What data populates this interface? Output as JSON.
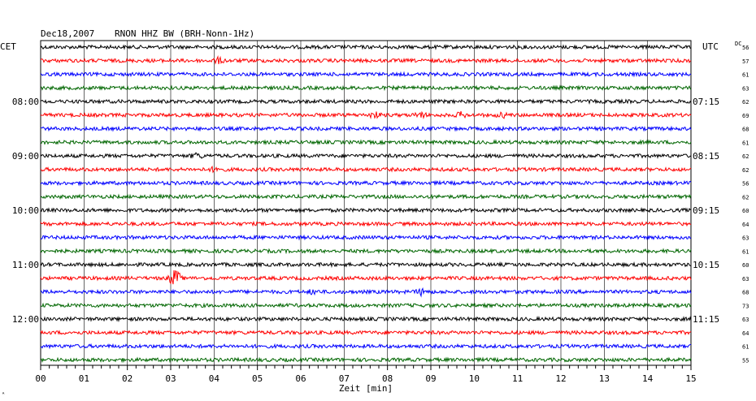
{
  "header": {
    "date": "Dec18,2007",
    "station": "RNON HHZ BW (BRH-Nonn-1Hz)"
  },
  "left_timezone": "CET",
  "right_timezone": "UTC",
  "dc_label": "DC",
  "xlabel": "Zeit [min]",
  "corner_mark": "ᴬ",
  "colors": {
    "trace_cycle": [
      "#000000",
      "#ff0000",
      "#0000ff",
      "#006600"
    ],
    "grid": "#000000"
  },
  "chart_data": {
    "type": "line",
    "title": "Dec18,2007  RNON HHZ BW (BRH-Nonn-1Hz)",
    "xlabel": "Zeit [min]",
    "ylabel": "",
    "xlim": [
      0,
      15
    ],
    "x_ticks": [
      "00",
      "01",
      "02",
      "03",
      "04",
      "05",
      "06",
      "07",
      "08",
      "09",
      "10",
      "11",
      "12",
      "13",
      "14",
      "15"
    ],
    "grid": true,
    "traces": [
      {
        "dc": "56",
        "cet": "",
        "utc": ""
      },
      {
        "dc": "57",
        "cet": "",
        "utc": ""
      },
      {
        "dc": "61",
        "cet": "",
        "utc": ""
      },
      {
        "dc": "63",
        "cet": "",
        "utc": ""
      },
      {
        "dc": "62",
        "cet": "08:00",
        "utc": "07:15"
      },
      {
        "dc": "69",
        "cet": "",
        "utc": ""
      },
      {
        "dc": "68",
        "cet": "",
        "utc": ""
      },
      {
        "dc": "61",
        "cet": "",
        "utc": ""
      },
      {
        "dc": "62",
        "cet": "09:00",
        "utc": "08:15"
      },
      {
        "dc": "62",
        "cet": "",
        "utc": ""
      },
      {
        "dc": "56",
        "cet": "",
        "utc": ""
      },
      {
        "dc": "62",
        "cet": "",
        "utc": ""
      },
      {
        "dc": "60",
        "cet": "10:00",
        "utc": "09:15"
      },
      {
        "dc": "64",
        "cet": "",
        "utc": ""
      },
      {
        "dc": "63",
        "cet": "",
        "utc": ""
      },
      {
        "dc": "61",
        "cet": "",
        "utc": ""
      },
      {
        "dc": "60",
        "cet": "11:00",
        "utc": "10:15"
      },
      {
        "dc": "63",
        "cet": "",
        "utc": ""
      },
      {
        "dc": "68",
        "cet": "",
        "utc": ""
      },
      {
        "dc": "73",
        "cet": "",
        "utc": ""
      },
      {
        "dc": "63",
        "cet": "12:00",
        "utc": "11:15"
      },
      {
        "dc": "64",
        "cet": "",
        "utc": ""
      },
      {
        "dc": "61",
        "cet": "",
        "utc": ""
      },
      {
        "dc": "55",
        "cet": "",
        "utc": ""
      }
    ],
    "events": [
      {
        "trace": 5,
        "minute": 7.7,
        "amplitude": 0.45
      },
      {
        "trace": 5,
        "minute": 8.75,
        "amplitude": 0.4
      },
      {
        "trace": 5,
        "minute": 9.7,
        "amplitude": 0.4
      },
      {
        "trace": 5,
        "minute": 10.65,
        "amplitude": 0.35
      },
      {
        "trace": 1,
        "minute": 4.1,
        "amplitude": 0.4
      },
      {
        "trace": 8,
        "minute": 3.6,
        "amplitude": 0.4
      },
      {
        "trace": 9,
        "minute": 4.05,
        "amplitude": 0.4
      },
      {
        "trace": 17,
        "minute": 3.1,
        "amplitude": 1.5
      },
      {
        "trace": 18,
        "minute": 8.8,
        "amplitude": 0.5
      },
      {
        "trace": 18,
        "minute": 6.3,
        "amplitude": 0.35
      }
    ]
  }
}
